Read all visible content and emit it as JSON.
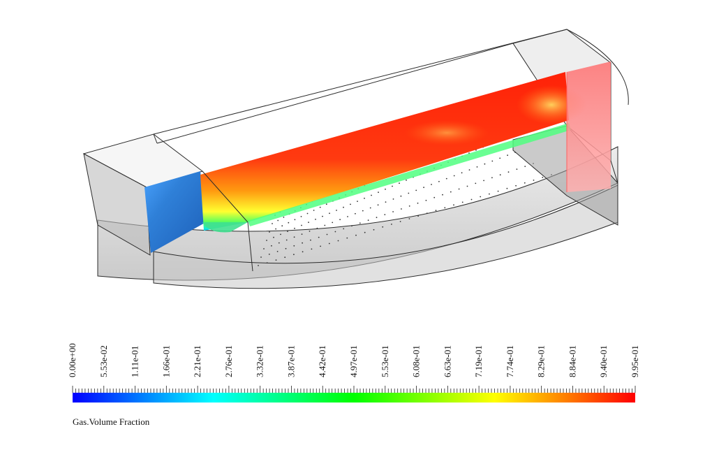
{
  "legend": {
    "title": "Gas.Volume Fraction",
    "min": 0.0,
    "max": 0.995,
    "tick_labels": [
      "0.00e+00",
      "5.53e-02",
      "1.11e-01",
      "1.66e-01",
      "2.21e-01",
      "2.76e-01",
      "3.32e-01",
      "3.87e-01",
      "4.42e-01",
      "4.97e-01",
      "5.53e-01",
      "6.08e-01",
      "6.63e-01",
      "7.19e-01",
      "7.74e-01",
      "8.29e-01",
      "8.84e-01",
      "9.40e-01",
      "9.95e-01"
    ],
    "colormap": [
      "#0000ff",
      "#0080ff",
      "#00ffff",
      "#00ff80",
      "#00ff00",
      "#80ff00",
      "#ffff00",
      "#ff8000",
      "#ff0000"
    ]
  },
  "colors": {
    "field_liquid": "#1f6fd0",
    "field_gas": "#ff2a10",
    "interface": "#ffff30",
    "vessel_edge": "#2a2a2a",
    "vessel_fill": "#d8d8d8"
  }
}
